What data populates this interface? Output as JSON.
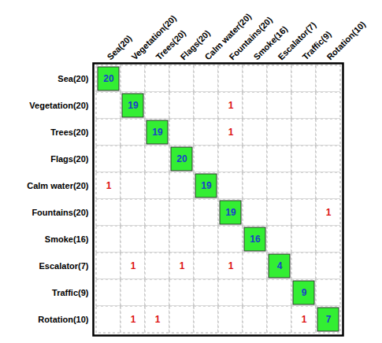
{
  "chart_data": {
    "type": "heatmap",
    "labels": [
      "Sea(20)",
      "Vegetation(20)",
      "Trees(20)",
      "Flags(20)",
      "Calm water(20)",
      "Fountains(20)",
      "Smoke(16)",
      "Escalator(7)",
      "Traffic(9)",
      "Rotation(10)"
    ],
    "cells": [
      [
        20,
        null,
        null,
        null,
        null,
        null,
        null,
        null,
        null,
        null
      ],
      [
        null,
        19,
        null,
        null,
        null,
        1,
        null,
        null,
        null,
        null
      ],
      [
        null,
        null,
        19,
        null,
        null,
        1,
        null,
        null,
        null,
        null
      ],
      [
        null,
        null,
        null,
        20,
        null,
        null,
        null,
        null,
        null,
        null
      ],
      [
        1,
        null,
        null,
        null,
        19,
        null,
        null,
        null,
        null,
        null
      ],
      [
        null,
        null,
        null,
        null,
        null,
        19,
        null,
        null,
        null,
        1
      ],
      [
        null,
        null,
        null,
        null,
        null,
        null,
        16,
        null,
        null,
        null
      ],
      [
        null,
        1,
        null,
        1,
        null,
        1,
        null,
        4,
        null,
        null
      ],
      [
        null,
        null,
        null,
        null,
        null,
        null,
        null,
        null,
        9,
        null
      ],
      [
        null,
        1,
        1,
        null,
        null,
        null,
        null,
        null,
        1,
        7
      ]
    ],
    "data_labels": true
  }
}
